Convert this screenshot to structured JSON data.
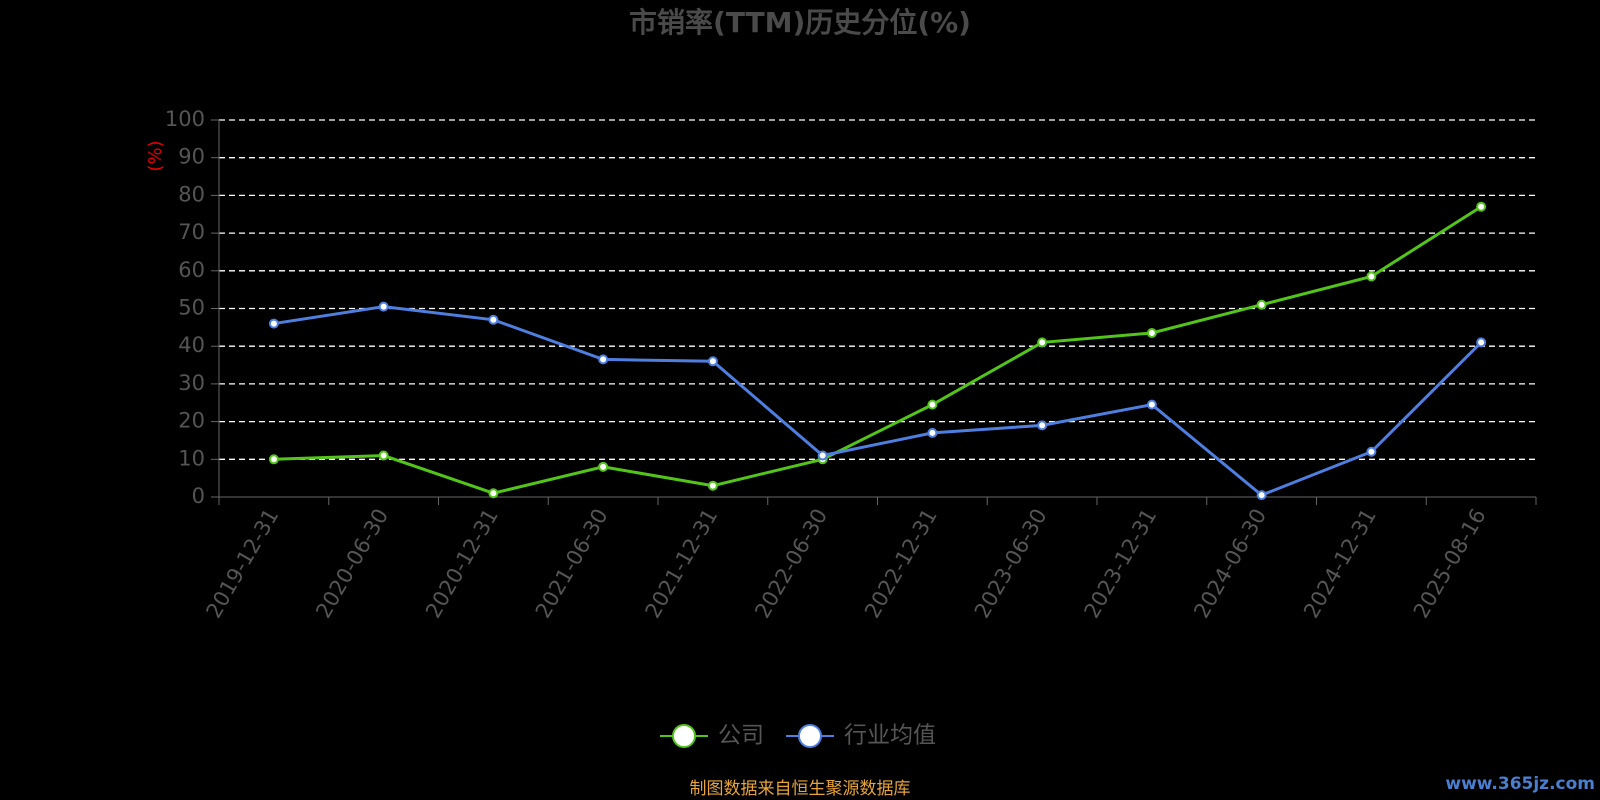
{
  "chart_data": {
    "type": "line",
    "title": "市销率(TTM)历史分位(%)",
    "y_axis_label": "(%)",
    "categories": [
      "2019-12-31",
      "2020-06-30",
      "2020-12-31",
      "2021-06-30",
      "2021-12-31",
      "2022-06-30",
      "2022-12-31",
      "2023-06-30",
      "2023-12-31",
      "2024-06-30",
      "2024-12-31",
      "2025-08-16"
    ],
    "series": [
      {
        "name": "公司",
        "color": "#52c41a",
        "values": [
          10,
          11,
          1,
          8,
          3,
          10,
          24.5,
          41,
          43.5,
          51,
          58.5,
          77
        ]
      },
      {
        "name": "行业均值",
        "color": "#4e7fe0",
        "values": [
          46,
          50.5,
          47,
          36.5,
          36,
          11,
          17,
          19,
          24.5,
          0.5,
          12,
          41
        ]
      }
    ],
    "ylim": [
      0,
      100
    ],
    "yticks": [
      0,
      10,
      20,
      30,
      40,
      50,
      60,
      70,
      80,
      90,
      100
    ],
    "grid": true,
    "legend": "bottom",
    "source": "制图数据来自恒生聚源数据库",
    "watermark": "www.365jz.com"
  }
}
